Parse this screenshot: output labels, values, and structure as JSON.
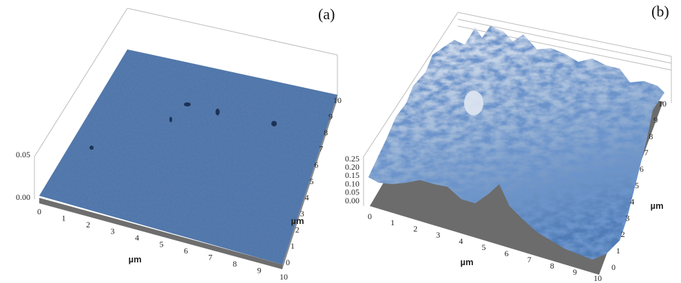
{
  "panels": [
    {
      "label": "(a)",
      "z_ticks": [
        "0.00",
        "0.05"
      ],
      "x_ticks": [
        "0",
        "1",
        "2",
        "3",
        "4",
        "5",
        "6",
        "7",
        "8",
        "9",
        "10"
      ],
      "y_ticks": [
        "0",
        "1",
        "2",
        "3",
        "4",
        "5",
        "6",
        "7",
        "8",
        "9",
        "10"
      ],
      "x_unit": "µm",
      "y_unit": "µm"
    },
    {
      "label": "(b)",
      "z_ticks": [
        "0.00",
        "0.05",
        "0.10",
        "0.15",
        "0.20",
        "0.25"
      ],
      "x_ticks": [
        "0",
        "1",
        "2",
        "3",
        "4",
        "5",
        "6",
        "7",
        "8",
        "9",
        "10"
      ],
      "y_ticks": [
        "0",
        "1",
        "2",
        "3",
        "4",
        "5",
        "6",
        "7",
        "8",
        "9",
        "10"
      ],
      "x_unit": "µm",
      "y_unit": "µm"
    }
  ]
}
